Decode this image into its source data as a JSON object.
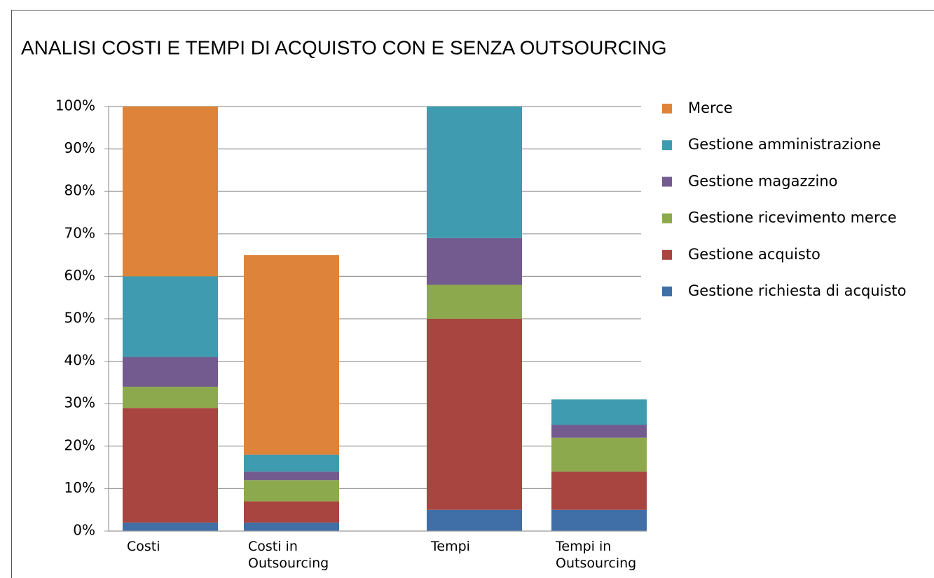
{
  "chart_data": {
    "type": "bar",
    "stacked": true,
    "title": "ANALISI COSTI E TEMPI DI ACQUISTO CON E SENZA OUTSOURCING",
    "categories": [
      "Costi",
      "Costi in Outsourcing",
      "Tempi",
      "Tempi in Outsourcing"
    ],
    "series": [
      {
        "name": "Gestione richiesta di acquisto",
        "color": "#3f6fa6",
        "values": [
          2,
          2,
          5,
          5
        ]
      },
      {
        "name": "Gestione acquisto",
        "color": "#a84540",
        "values": [
          27,
          5,
          45,
          9
        ]
      },
      {
        "name": "Gestione ricevimento merce",
        "color": "#8da94e",
        "values": [
          5,
          5,
          8,
          8
        ]
      },
      {
        "name": "Gestione magazzino",
        "color": "#735a8f",
        "values": [
          7,
          2,
          11,
          3
        ]
      },
      {
        "name": "Gestione amministrazione",
        "color": "#3f9bb0",
        "values": [
          19,
          4,
          31,
          6
        ]
      },
      {
        "name": "Merce",
        "color": "#dd843a",
        "values": [
          40,
          47,
          0,
          0
        ]
      }
    ],
    "ylim": [
      0,
      100
    ],
    "yticks": [
      {
        "value": 0,
        "label": "0%"
      },
      {
        "value": 10,
        "label": "10%"
      },
      {
        "value": 20,
        "label": "20%"
      },
      {
        "value": 30,
        "label": "30%"
      },
      {
        "value": 40,
        "label": "40%"
      },
      {
        "value": 50,
        "label": "50%"
      },
      {
        "value": 60,
        "label": "60%"
      },
      {
        "value": 70,
        "label": "70%"
      },
      {
        "value": 80,
        "label": "80%"
      },
      {
        "value": 90,
        "label": "90%"
      },
      {
        "value": 100,
        "label": "100%"
      }
    ],
    "grid": true,
    "legend": "right"
  }
}
